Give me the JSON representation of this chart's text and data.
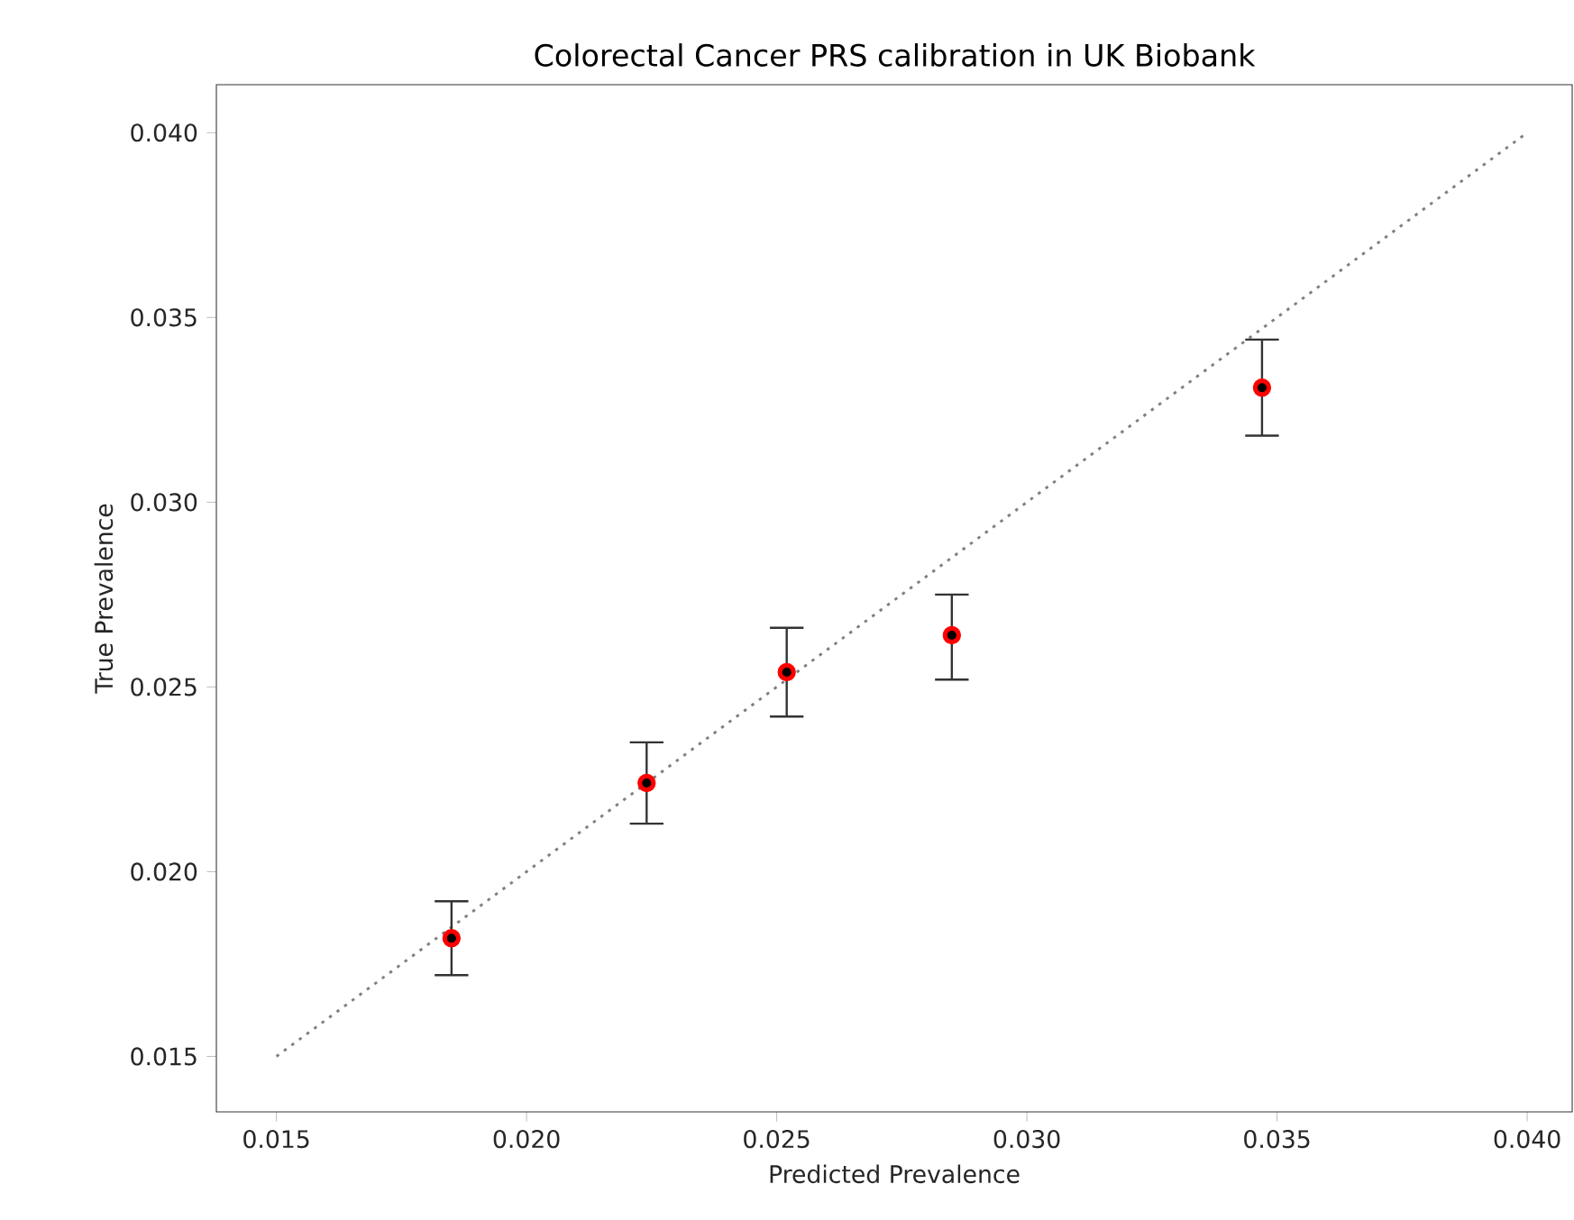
{
  "chart_data": {
    "type": "scatter",
    "title": "Colorectal Cancer PRS calibration in UK Biobank",
    "xlabel": "Predicted Prevalence",
    "ylabel": "True Prevalence",
    "xlim": [
      0.0138,
      0.0409
    ],
    "ylim": [
      0.0135,
      0.0413
    ],
    "xticks": [
      0.015,
      {
        "value": 0.02,
        "label": "0.020"
      },
      0.025,
      {
        "value": 0.03,
        "label": "0.030"
      },
      0.035,
      {
        "value": 0.04,
        "label": "0.040"
      }
    ],
    "yticks": [
      0.015,
      {
        "value": 0.02,
        "label": "0.020"
      },
      0.025,
      {
        "value": 0.03,
        "label": "0.030"
      },
      0.035,
      {
        "value": 0.04,
        "label": "0.040"
      }
    ],
    "series": [
      {
        "color": "#ff0000",
        "marker": "circle",
        "x": [
          0.0185,
          0.0224,
          0.0252,
          0.0285,
          0.0347
        ],
        "values": [
          0.0182,
          0.0224,
          0.0254,
          0.0264,
          0.0331
        ],
        "errors": [
          [
            0.0172,
            0.0192
          ],
          [
            0.0213,
            0.0235
          ],
          [
            0.0242,
            0.0266
          ],
          [
            0.0252,
            0.0275
          ],
          [
            0.0318,
            0.0344
          ]
        ]
      },
      {
        "type": "line",
        "color": "#808080",
        "line_style": "dotted",
        "marker": "none",
        "x": [
          0.015,
          0.04
        ],
        "values": [
          0.015,
          0.04
        ]
      }
    ]
  }
}
